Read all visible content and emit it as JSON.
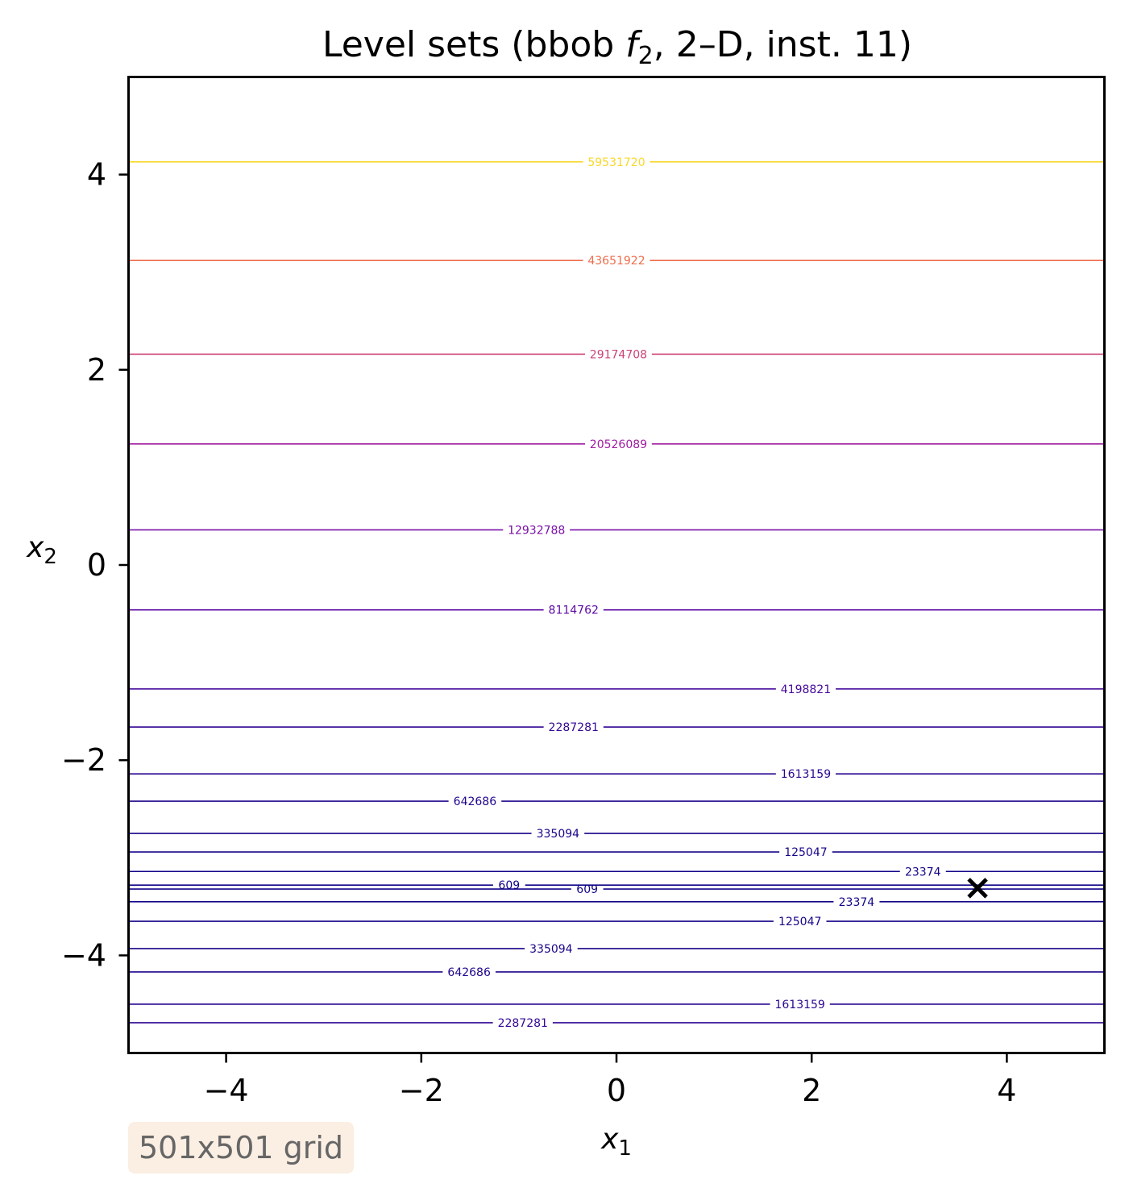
{
  "chart_data": {
    "type": "contour",
    "title": "Level sets (bbob f2, 2–D, inst. 11)",
    "title_parts": {
      "before": "Level sets (bbob ",
      "f": "f",
      "sub": "2",
      "after": ", 2–D, inst. 11)"
    },
    "xlabel": {
      "main": "x",
      "sub": "1"
    },
    "ylabel": {
      "main": "x",
      "sub": "2"
    },
    "xlim": [
      -5,
      5
    ],
    "ylim": [
      -5,
      5
    ],
    "xticks": [
      -4,
      -2,
      0,
      2,
      4
    ],
    "yticks": [
      -4,
      -2,
      0,
      2,
      4
    ],
    "xtick_labels": [
      "−4",
      "−2",
      "0",
      "2",
      "4"
    ],
    "ytick_labels": [
      "−4",
      "−2",
      "0",
      "2",
      "4"
    ],
    "grid": false,
    "colormap": "plasma",
    "levels": [
      {
        "value": "59531720",
        "y": 4.13,
        "label_x": 0.0,
        "color": "#f8d72b"
      },
      {
        "value": "43651922",
        "y": 3.12,
        "label_x": 0.0,
        "color": "#ee6d4c"
      },
      {
        "value": "29174708",
        "y": 2.16,
        "label_x": 0.02,
        "color": "#cb4377"
      },
      {
        "value": "20526089",
        "y": 1.24,
        "label_x": 0.02,
        "color": "#9f1c9f"
      },
      {
        "value": "12932788",
        "y": 0.36,
        "label_x": -0.82,
        "color": "#7a10a8"
      },
      {
        "value": "8114762",
        "y": -0.46,
        "label_x": -0.44,
        "color": "#5c0aa4"
      },
      {
        "value": "4198821",
        "y": -1.27,
        "label_x": 1.94,
        "color": "#44089b"
      },
      {
        "value": "2287281",
        "y": -1.66,
        "label_x": -0.44,
        "color": "#330794"
      },
      {
        "value": "1613159",
        "y": -2.14,
        "label_x": 1.94,
        "color": "#2a0690"
      },
      {
        "value": "642686",
        "y": -2.42,
        "label_x": -1.45,
        "color": "#20058c"
      },
      {
        "value": "335094",
        "y": -2.75,
        "label_x": -0.6,
        "color": "#1a058a"
      },
      {
        "value": "125047",
        "y": -2.94,
        "label_x": 1.94,
        "color": "#160589"
      },
      {
        "value": "23374",
        "y": -3.14,
        "label_x": 3.14,
        "color": "#120588"
      },
      {
        "value": "609",
        "y": -3.28,
        "label_x": -1.1,
        "color": "#100588"
      },
      {
        "value": "609",
        "y": -3.32,
        "label_x": -0.3,
        "color": "#100588"
      },
      {
        "value": "23374",
        "y": -3.45,
        "label_x": 2.46,
        "color": "#120588"
      },
      {
        "value": "125047",
        "y": -3.65,
        "label_x": 1.88,
        "color": "#160589"
      },
      {
        "value": "335094",
        "y": -3.93,
        "label_x": -0.67,
        "color": "#1a058a"
      },
      {
        "value": "642686",
        "y": -4.17,
        "label_x": -1.51,
        "color": "#20058c"
      },
      {
        "value": "1613159",
        "y": -4.5,
        "label_x": 1.88,
        "color": "#2a0690"
      },
      {
        "value": "2287281",
        "y": -4.69,
        "label_x": -0.96,
        "color": "#330794"
      }
    ],
    "optimum_marker": {
      "symbol": "x",
      "x": 3.7,
      "y": -3.31,
      "color": "#000000"
    },
    "annotation": "501x501 grid"
  }
}
